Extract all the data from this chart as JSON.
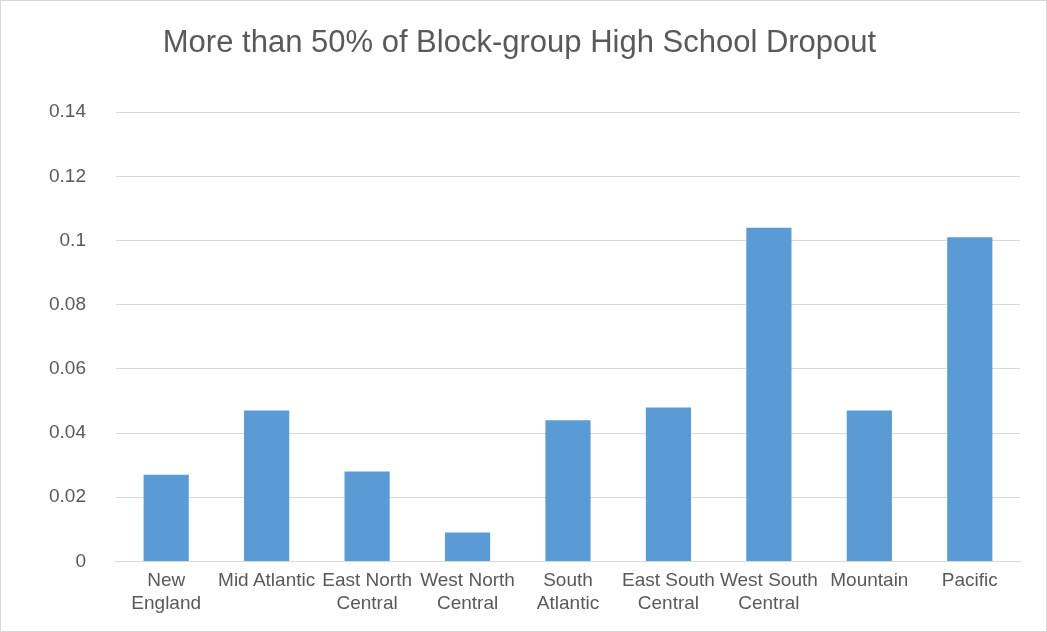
{
  "chart_data": {
    "type": "bar",
    "title": "More than 50% of Block-group High School Dropout",
    "categories": [
      "New England",
      "Mid Atlantic",
      "East North Central",
      "West North Central",
      "South Atlantic",
      "East South Central",
      "West South Central",
      "Mountain",
      "Pacific"
    ],
    "values": [
      0.027,
      0.047,
      0.028,
      0.009,
      0.044,
      0.048,
      0.104,
      0.047,
      0.101
    ],
    "color": "#5b9bd5",
    "ylim": [
      0,
      0.14
    ],
    "yticks": [
      0,
      0.02,
      0.04,
      0.06,
      0.08,
      0.1,
      0.12,
      0.14
    ],
    "grid": "y"
  }
}
